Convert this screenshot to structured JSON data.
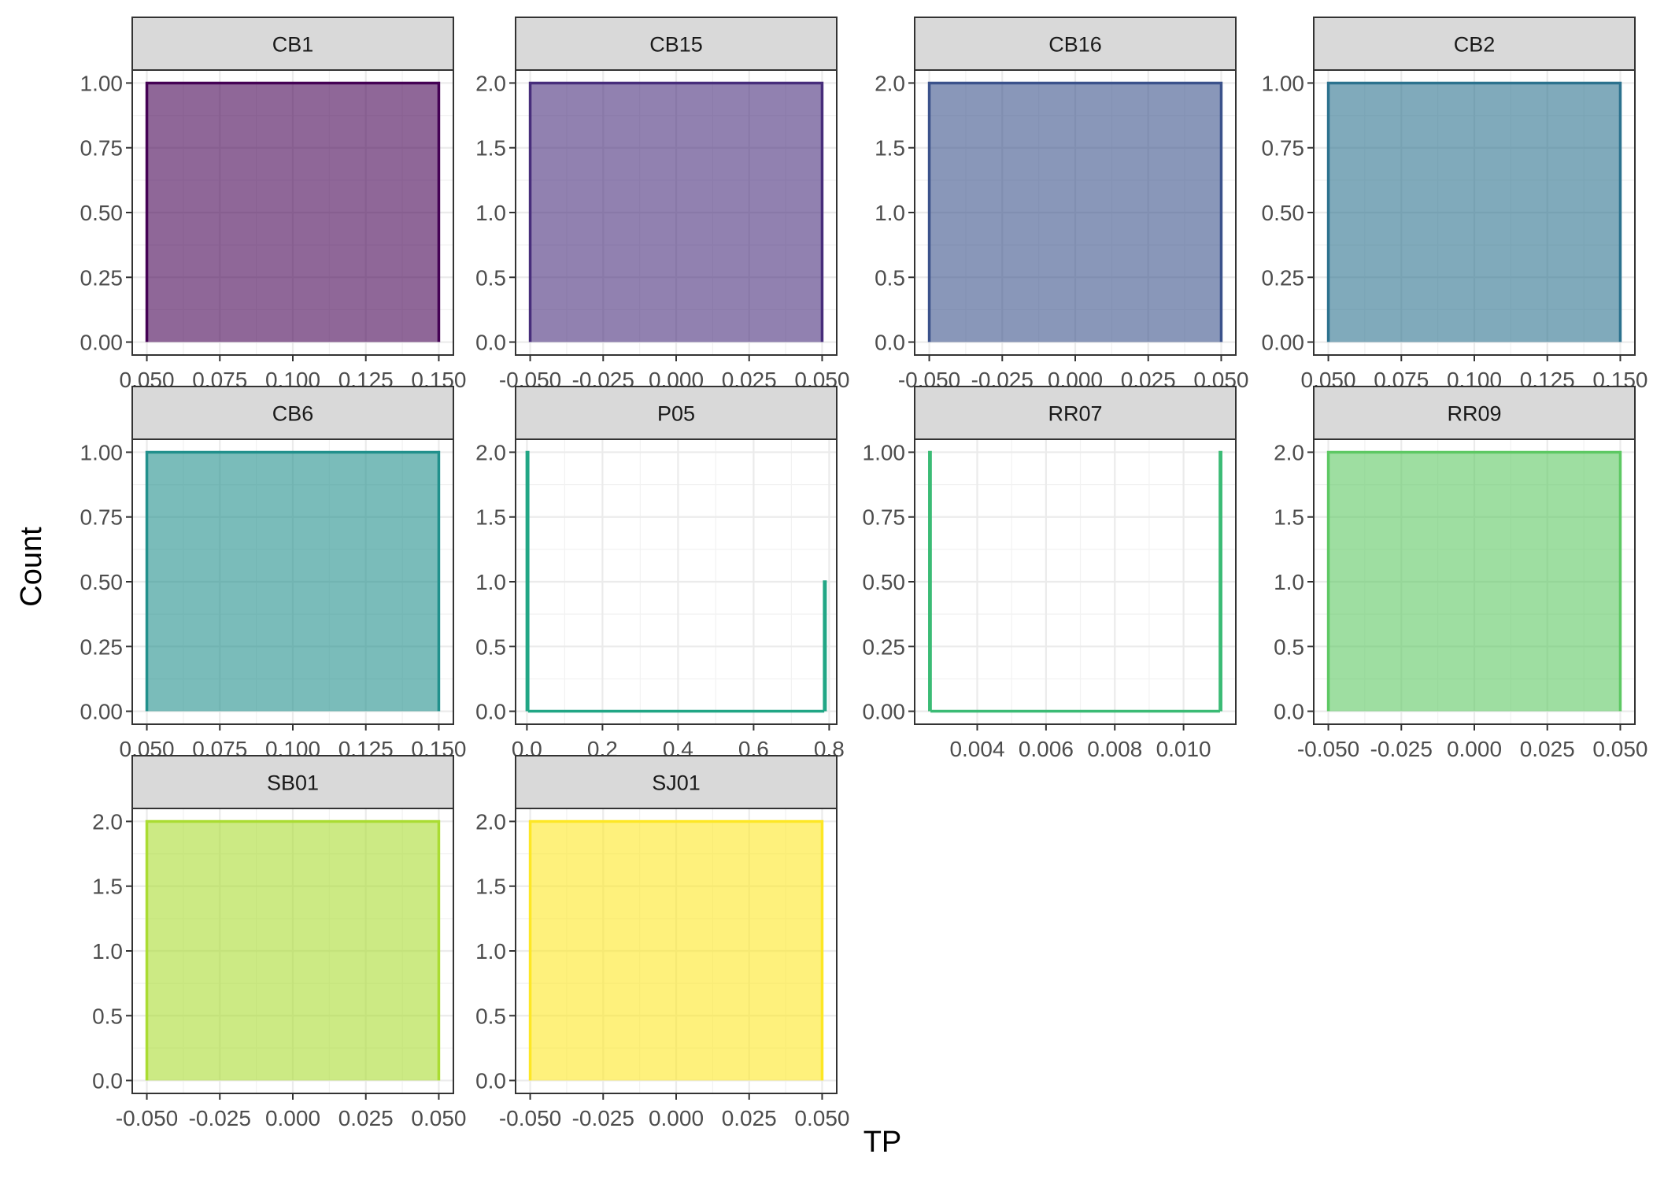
{
  "chart_data": {
    "type": "bar",
    "xlabel": "TP",
    "ylabel": "Count",
    "grid": true,
    "legend": "none",
    "panels": [
      {
        "name": "CB1",
        "color": "#440154",
        "fill_opacity": 0.6,
        "xlim": [
          0.045,
          0.155
        ],
        "ylim": [
          0,
          1
        ],
        "x_ticks": [
          0.05,
          0.075,
          0.1,
          0.125,
          0.15
        ],
        "x_tick_labels": [
          "0.050",
          "0.075",
          "0.100",
          "0.125",
          "0.150"
        ],
        "y_ticks": [
          0,
          0.25,
          0.5,
          0.75,
          1
        ],
        "y_tick_labels": [
          "0.00",
          "0.25",
          "0.50",
          "0.75",
          "1.00"
        ],
        "bars": [
          {
            "x0": 0.05,
            "x1": 0.15,
            "count": 1
          }
        ]
      },
      {
        "name": "CB15",
        "color": "#472D7B",
        "fill_opacity": 0.6,
        "xlim": [
          -0.055,
          0.055
        ],
        "ylim": [
          0,
          2
        ],
        "x_ticks": [
          -0.05,
          -0.025,
          0,
          0.025,
          0.05
        ],
        "x_tick_labels": [
          "-0.050",
          "-0.025",
          "0.000",
          "0.025",
          "0.050"
        ],
        "y_ticks": [
          0,
          0.5,
          1,
          1.5,
          2
        ],
        "y_tick_labels": [
          "0.0",
          "0.5",
          "1.0",
          "1.5",
          "2.0"
        ],
        "bars": [
          {
            "x0": -0.05,
            "x1": 0.05,
            "count": 2
          }
        ]
      },
      {
        "name": "CB16",
        "color": "#3B528B",
        "fill_opacity": 0.6,
        "xlim": [
          -0.055,
          0.055
        ],
        "ylim": [
          0,
          2
        ],
        "x_ticks": [
          -0.05,
          -0.025,
          0,
          0.025,
          0.05
        ],
        "x_tick_labels": [
          "-0.050",
          "-0.025",
          "0.000",
          "0.025",
          "0.050"
        ],
        "y_ticks": [
          0,
          0.5,
          1,
          1.5,
          2
        ],
        "y_tick_labels": [
          "0.0",
          "0.5",
          "1.0",
          "1.5",
          "2.0"
        ],
        "bars": [
          {
            "x0": -0.05,
            "x1": 0.05,
            "count": 2
          }
        ]
      },
      {
        "name": "CB2",
        "color": "#2C728E",
        "fill_opacity": 0.6,
        "xlim": [
          0.045,
          0.155
        ],
        "ylim": [
          0,
          1
        ],
        "x_ticks": [
          0.05,
          0.075,
          0.1,
          0.125,
          0.15
        ],
        "x_tick_labels": [
          "0.050",
          "0.075",
          "0.100",
          "0.125",
          "0.150"
        ],
        "y_ticks": [
          0,
          0.25,
          0.5,
          0.75,
          1
        ],
        "y_tick_labels": [
          "0.00",
          "0.25",
          "0.50",
          "0.75",
          "1.00"
        ],
        "bars": [
          {
            "x0": 0.05,
            "x1": 0.15,
            "count": 1
          }
        ]
      },
      {
        "name": "CB6",
        "color": "#21908C",
        "fill_opacity": 0.6,
        "xlim": [
          0.045,
          0.155
        ],
        "ylim": [
          0,
          1
        ],
        "x_ticks": [
          0.05,
          0.075,
          0.1,
          0.125,
          0.15
        ],
        "x_tick_labels": [
          "0.050",
          "0.075",
          "0.100",
          "0.125",
          "0.150"
        ],
        "y_ticks": [
          0,
          0.25,
          0.5,
          0.75,
          1
        ],
        "y_tick_labels": [
          "0.00",
          "0.25",
          "0.50",
          "0.75",
          "1.00"
        ],
        "bars": [
          {
            "x0": 0.05,
            "x1": 0.15,
            "count": 1
          }
        ]
      },
      {
        "name": "P05",
        "color": "#21A685",
        "fill_opacity": 0.6,
        "xlim": [
          -0.03,
          0.82
        ],
        "ylim": [
          0,
          2
        ],
        "x_ticks": [
          0,
          0.2,
          0.4,
          0.6,
          0.8
        ],
        "x_tick_labels": [
          "0.0",
          "0.2",
          "0.4",
          "0.6",
          "0.8"
        ],
        "y_ticks": [
          0,
          0.5,
          1,
          1.5,
          2
        ],
        "y_tick_labels": [
          "0.0",
          "0.5",
          "1.0",
          "1.5",
          "2.0"
        ],
        "bars": [
          {
            "x0": 0.0,
            "x1": 0.003,
            "count": 2
          },
          {
            "x0": 0.003,
            "x1": 0.787,
            "count": 0
          },
          {
            "x0": 0.787,
            "x1": 0.79,
            "count": 1
          }
        ]
      },
      {
        "name": "RR07",
        "color": "#3BBB75",
        "fill_opacity": 0.6,
        "xlim": [
          0.00218,
          0.01152
        ],
        "ylim": [
          0,
          1
        ],
        "x_ticks": [
          0.004,
          0.006,
          0.008,
          0.01
        ],
        "x_tick_labels": [
          "0.004",
          "0.006",
          "0.008",
          "0.010"
        ],
        "y_ticks": [
          0,
          0.25,
          0.5,
          0.75,
          1
        ],
        "y_tick_labels": [
          "0.00",
          "0.25",
          "0.50",
          "0.75",
          "1.00"
        ],
        "bars": [
          {
            "x0": 0.00261,
            "x1": 0.00264,
            "count": 1
          },
          {
            "x0": 0.00264,
            "x1": 0.01106,
            "count": 0
          },
          {
            "x0": 0.01106,
            "x1": 0.01109,
            "count": 1
          }
        ]
      },
      {
        "name": "RR09",
        "color": "#5DC863",
        "fill_opacity": 0.6,
        "xlim": [
          -0.055,
          0.055
        ],
        "ylim": [
          0,
          2
        ],
        "x_ticks": [
          -0.05,
          -0.025,
          0,
          0.025,
          0.05
        ],
        "x_tick_labels": [
          "-0.050",
          "-0.025",
          "0.000",
          "0.025",
          "0.050"
        ],
        "y_ticks": [
          0,
          0.5,
          1,
          1.5,
          2
        ],
        "y_tick_labels": [
          "0.0",
          "0.5",
          "1.0",
          "1.5",
          "2.0"
        ],
        "bars": [
          {
            "x0": -0.05,
            "x1": 0.05,
            "count": 2
          }
        ]
      },
      {
        "name": "SB01",
        "color": "#AADC32",
        "fill_opacity": 0.6,
        "xlim": [
          -0.055,
          0.055
        ],
        "ylim": [
          0,
          2
        ],
        "x_ticks": [
          -0.05,
          -0.025,
          0,
          0.025,
          0.05
        ],
        "x_tick_labels": [
          "-0.050",
          "-0.025",
          "0.000",
          "0.025",
          "0.050"
        ],
        "y_ticks": [
          0,
          0.5,
          1,
          1.5,
          2
        ],
        "y_tick_labels": [
          "0.0",
          "0.5",
          "1.0",
          "1.5",
          "2.0"
        ],
        "bars": [
          {
            "x0": -0.05,
            "x1": 0.05,
            "count": 2
          }
        ]
      },
      {
        "name": "SJ01",
        "color": "#FDE725",
        "fill_opacity": 0.6,
        "xlim": [
          -0.055,
          0.055
        ],
        "ylim": [
          0,
          2
        ],
        "x_ticks": [
          -0.05,
          -0.025,
          0,
          0.025,
          0.05
        ],
        "x_tick_labels": [
          "-0.050",
          "-0.025",
          "0.000",
          "0.025",
          "0.050"
        ],
        "y_ticks": [
          0,
          0.5,
          1,
          1.5,
          2
        ],
        "y_tick_labels": [
          "0.0",
          "0.5",
          "1.0",
          "1.5",
          "2.0"
        ],
        "bars": [
          {
            "x0": -0.05,
            "x1": 0.05,
            "count": 2
          }
        ]
      }
    ]
  }
}
